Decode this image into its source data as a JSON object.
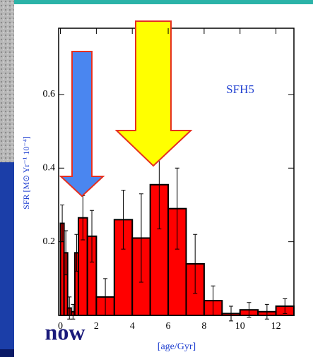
{
  "chart_data": {
    "type": "histogram",
    "annotation": "SFH5",
    "note": "now",
    "x_label": "[age/Gyr]",
    "y_label": "SFR [M⊙ Yr⁻¹ 10⁻⁴]",
    "bins": [
      0,
      0.2,
      0.4,
      0.6,
      0.8,
      1.0,
      1.5,
      2,
      3,
      4,
      5,
      6,
      7,
      8,
      9,
      10,
      11,
      12,
      13
    ],
    "values": [
      0.25,
      0.17,
      0.02,
      0.01,
      0.17,
      0.265,
      0.215,
      0.05,
      0.26,
      0.21,
      0.355,
      0.29,
      0.14,
      0.04,
      0.005,
      0.015,
      0.01,
      0.025
    ],
    "errors": [
      0.05,
      0.06,
      0.03,
      0.02,
      0.05,
      0.06,
      0.07,
      0.05,
      0.08,
      0.12,
      0.12,
      0.11,
      0.08,
      0.04,
      0.02,
      0.02,
      0.02,
      0.02
    ],
    "color": "#ff0000",
    "xlim": [
      -0.1,
      13
    ],
    "ylim": [
      0,
      0.78
    ],
    "xticks": [
      0,
      2,
      4,
      6,
      8,
      10,
      12
    ],
    "yticks": [
      0.2,
      0.4,
      0.6
    ]
  }
}
